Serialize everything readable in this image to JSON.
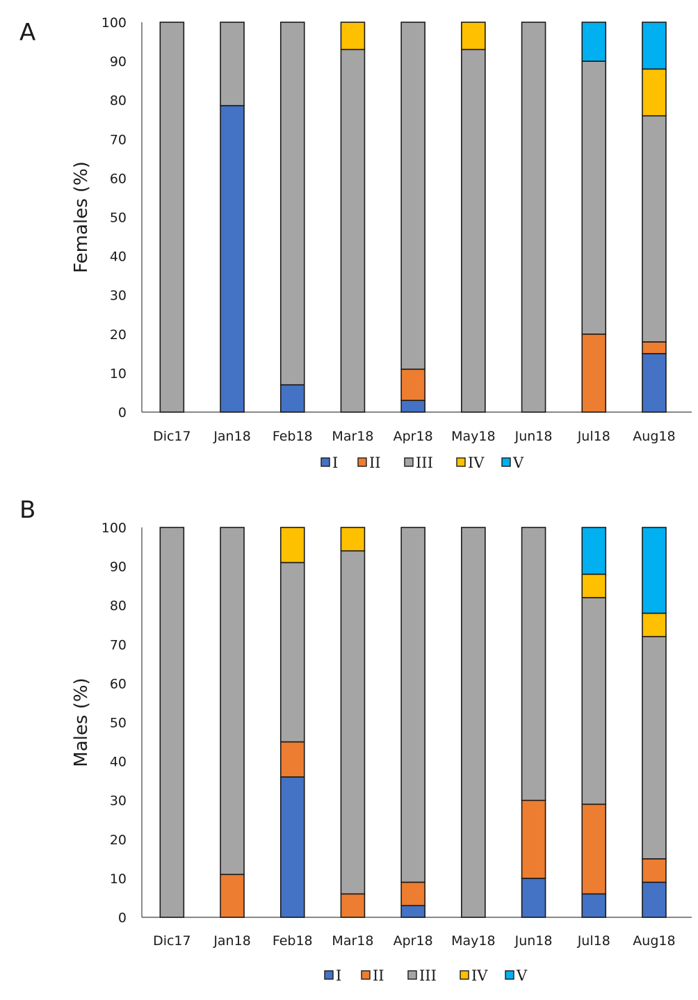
{
  "chart_data": [
    {
      "type": "bar",
      "stacked": true,
      "panel": "A",
      "title": "",
      "xlabel": "",
      "ylabel": "Females (%)",
      "ylim": [
        0,
        100
      ],
      "yticks": [
        0,
        10,
        20,
        30,
        40,
        50,
        60,
        70,
        80,
        90,
        100
      ],
      "grid": false,
      "legend_position": "bottom",
      "categories": [
        "Dic17",
        "Jan18",
        "Feb18",
        "Mar18",
        "Apr18",
        "May18",
        "Jun18",
        "Jul18",
        "Aug18"
      ],
      "series": [
        {
          "name": "I",
          "color": "#4472c4",
          "values": [
            0,
            78.6,
            7,
            0,
            3,
            0,
            0,
            0,
            15
          ]
        },
        {
          "name": "II",
          "color": "#ed7d31",
          "values": [
            0,
            0,
            0,
            0,
            8,
            0,
            0,
            20,
            3
          ]
        },
        {
          "name": "III",
          "color": "#a5a5a5",
          "values": [
            100,
            21.4,
            93,
            93,
            89,
            93,
            100,
            70,
            58
          ]
        },
        {
          "name": "IV",
          "color": "#ffc000",
          "values": [
            0,
            0,
            0,
            7,
            0,
            7,
            0,
            0,
            12
          ]
        },
        {
          "name": "V",
          "color": "#00b0f0",
          "values": [
            0,
            0,
            0,
            0,
            0,
            0,
            0,
            10,
            12
          ]
        }
      ]
    },
    {
      "type": "bar",
      "stacked": true,
      "panel": "B",
      "title": "",
      "xlabel": "",
      "ylabel": "Males (%)",
      "ylim": [
        0,
        100
      ],
      "yticks": [
        0,
        10,
        20,
        30,
        40,
        50,
        60,
        70,
        80,
        90,
        100
      ],
      "grid": false,
      "legend_position": "bottom",
      "categories": [
        "Dic17",
        "Jan18",
        "Feb18",
        "Mar18",
        "Apr18",
        "May18",
        "Jun18",
        "Jul18",
        "Aug18"
      ],
      "series": [
        {
          "name": "I",
          "color": "#4472c4",
          "values": [
            0,
            0,
            36,
            0,
            3,
            0,
            10,
            6,
            9
          ]
        },
        {
          "name": "II",
          "color": "#ed7d31",
          "values": [
            0,
            11,
            9,
            6,
            6,
            0,
            20,
            23,
            6
          ]
        },
        {
          "name": "III",
          "color": "#a5a5a5",
          "values": [
            100,
            89,
            46,
            88,
            91,
            100,
            70,
            53,
            57
          ]
        },
        {
          "name": "IV",
          "color": "#ffc000",
          "values": [
            0,
            0,
            9,
            6,
            0,
            0,
            0,
            6,
            6
          ]
        },
        {
          "name": "V",
          "color": "#00b0f0",
          "values": [
            0,
            0,
            0,
            0,
            0,
            0,
            0,
            12,
            22
          ]
        }
      ]
    }
  ]
}
